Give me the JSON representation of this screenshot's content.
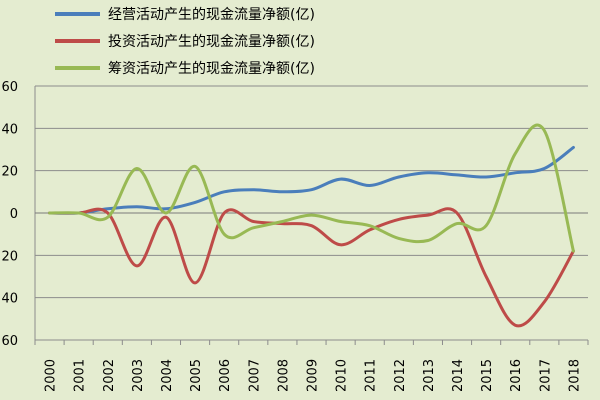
{
  "chart_data": {
    "type": "line",
    "title": "",
    "xlabel": "",
    "ylabel": "",
    "ylim": [
      -60,
      60
    ],
    "yticks": [
      -60,
      -40,
      -20,
      0,
      20,
      40,
      60
    ],
    "ytick_labels": [
      "60",
      "40",
      "20",
      "0",
      "20",
      "40",
      "60"
    ],
    "grid": true,
    "legend_position": "top-left",
    "categories": [
      "2000",
      "2001",
      "2002",
      "2003",
      "2004",
      "2005",
      "2006",
      "2007",
      "2008",
      "2009",
      "2010",
      "2011",
      "2012",
      "2013",
      "2014",
      "2015",
      "2016",
      "2017",
      "2018"
    ],
    "series": [
      {
        "name": "经营活动产生的现金流量净额(亿)",
        "color": "#4a7ebb",
        "values": [
          0,
          0,
          2,
          3,
          2,
          5,
          10,
          11,
          10,
          11,
          16,
          13,
          17,
          19,
          18,
          17,
          19,
          21,
          31
        ]
      },
      {
        "name": "投资活动产生的现金流量净额(亿)",
        "color": "#be4b48",
        "values": [
          0,
          0,
          0,
          -25,
          -2,
          -33,
          0,
          -4,
          -5,
          -6,
          -15,
          -8,
          -3,
          -1,
          0,
          -30,
          -53,
          -42,
          -18
        ]
      },
      {
        "name": "筹资活动产生的现金流量净额(亿)",
        "color": "#98b954",
        "values": [
          0,
          0,
          -2,
          21,
          0,
          22,
          -10,
          -7,
          -4,
          -1,
          -4,
          -6,
          -12,
          -13,
          -5,
          -6,
          28,
          39,
          -18
        ]
      }
    ]
  }
}
